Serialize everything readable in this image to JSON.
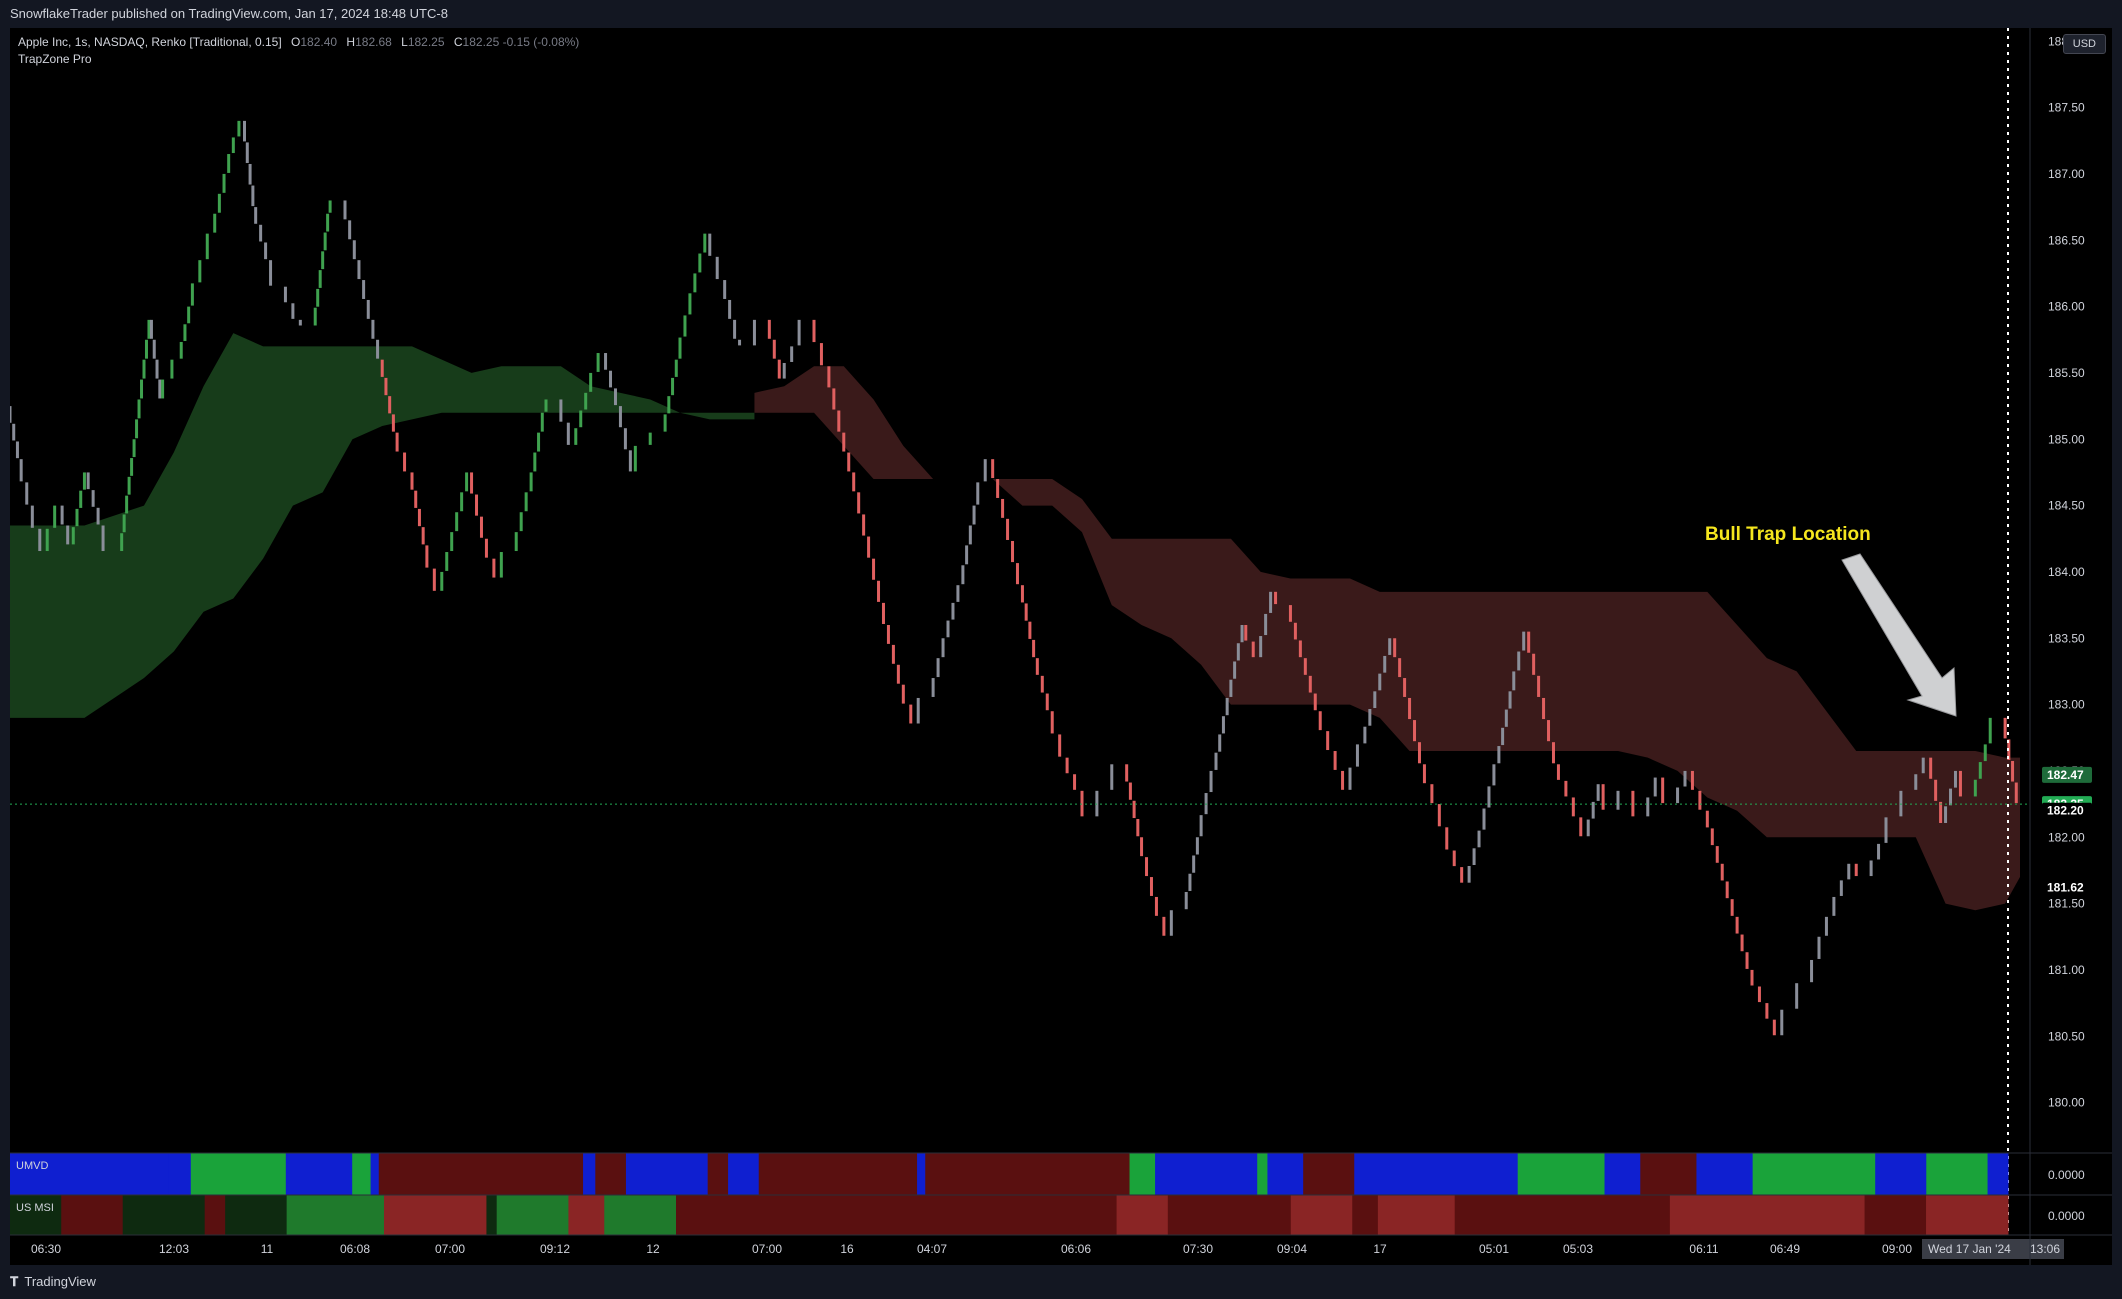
{
  "header": {
    "published": "SnowflakeTrader published on TradingView.com, Jan 17, 2024 18:48 UTC-8"
  },
  "legend": {
    "symbol": "Apple Inc, 1s, NASDAQ, Renko [Traditional, 0.15]",
    "open_label": "O",
    "open": "182.40",
    "high_label": "H",
    "high": "182.68",
    "low_label": "L",
    "low": "182.25",
    "close_label": "C",
    "close": "182.25",
    "change": "-0.15 (-0.08%)",
    "indicator": "TrapZone Pro"
  },
  "currency_button": "USD",
  "annotation": {
    "text": "Bull Trap Location",
    "color": "#f5e61e"
  },
  "subpanes": [
    {
      "name": "UMVD",
      "value": "0.0000"
    },
    {
      "name": "US MSI",
      "value": "0.0000"
    }
  ],
  "price_tags": [
    {
      "value": "182.47",
      "bg": "#1e6b3a",
      "color": "#ffffff"
    },
    {
      "value": "182.25",
      "bg": "#22ab54",
      "color": "#ffffff"
    },
    {
      "value": "182.20",
      "bg": "#000000",
      "color": "#ffffff"
    },
    {
      "value": "181.62",
      "bg": "#000000",
      "color": "#ffffff"
    }
  ],
  "crosshair_time": "Wed 17 Jan '24",
  "crosshair_time_right": "13:06",
  "footer": {
    "brand": "TradingView"
  },
  "colors": {
    "up": "#3fa24f",
    "down": "#e06060",
    "neutral": "#8a8e99",
    "bull_zone": "#173c1a",
    "bear_zone": "#3a1a1a",
    "background": "#000000"
  },
  "chart_data": {
    "type": "renko",
    "box_size": 0.15,
    "y_ticks": [
      "188.00",
      "187.50",
      "187.00",
      "186.50",
      "186.00",
      "185.50",
      "185.00",
      "184.50",
      "184.00",
      "183.50",
      "183.00",
      "182.50",
      "182.00",
      "181.50",
      "181.00",
      "180.50",
      "180.00"
    ],
    "ylim": [
      179.62,
      188.1
    ],
    "x_ticks": [
      "06:30",
      "12:03",
      "11",
      "06:08",
      "07:00",
      "09:12",
      "12",
      "07:00",
      "16",
      "04:07",
      "06:06",
      "07:30",
      "09:04",
      "17",
      "05:01",
      "05:03",
      "06:11",
      "06:49",
      "09:00"
    ],
    "price_path": [
      [
        0,
        185.25
      ],
      [
        1.5,
        184.85
      ],
      [
        3,
        184.5
      ],
      [
        5,
        184.15
      ],
      [
        7,
        184.5
      ],
      [
        8.5,
        184.2
      ],
      [
        10.5,
        184.75
      ],
      [
        12.5,
        184.35
      ],
      [
        15,
        184.15
      ],
      [
        17,
        185.0
      ],
      [
        19,
        185.9
      ],
      [
        20.5,
        185.3
      ],
      [
        23,
        185.6
      ],
      [
        24.5,
        186.0
      ],
      [
        26.5,
        186.35
      ],
      [
        27.5,
        186.55
      ],
      [
        30,
        187.15
      ],
      [
        31.5,
        187.4
      ],
      [
        33,
        186.75
      ],
      [
        35,
        186.35
      ],
      [
        37,
        186.15
      ],
      [
        39,
        185.9
      ],
      [
        41,
        185.85
      ],
      [
        43,
        186.7
      ],
      [
        45,
        186.8
      ],
      [
        47.5,
        186.2
      ],
      [
        50,
        185.6
      ],
      [
        52,
        185.05
      ],
      [
        54,
        184.75
      ],
      [
        56,
        184.2
      ],
      [
        58,
        183.85
      ],
      [
        60,
        184.3
      ],
      [
        62,
        184.75
      ],
      [
        64,
        184.25
      ],
      [
        66,
        183.95
      ],
      [
        68,
        184.15
      ],
      [
        70,
        184.6
      ],
      [
        72,
        185.2
      ],
      [
        74,
        185.3
      ],
      [
        76,
        184.95
      ],
      [
        78,
        185.35
      ],
      [
        80,
        185.65
      ],
      [
        82,
        185.25
      ],
      [
        84,
        184.75
      ],
      [
        86,
        184.95
      ],
      [
        88,
        185.05
      ],
      [
        90,
        185.6
      ],
      [
        92,
        186.1
      ],
      [
        94,
        186.55
      ],
      [
        96,
        186.2
      ],
      [
        98,
        185.75
      ],
      [
        100,
        185.7
      ],
      [
        102,
        185.9
      ],
      [
        104,
        185.45
      ],
      [
        106,
        185.7
      ],
      [
        108,
        185.9
      ],
      [
        110,
        185.55
      ],
      [
        112,
        185.05
      ],
      [
        114,
        184.6
      ],
      [
        116,
        184.1
      ],
      [
        118,
        183.6
      ],
      [
        120,
        183.15
      ],
      [
        122,
        182.85
      ],
      [
        124,
        183.05
      ],
      [
        126,
        183.5
      ],
      [
        128,
        183.9
      ],
      [
        130,
        184.5
      ],
      [
        132,
        184.85
      ],
      [
        134,
        184.4
      ],
      [
        136,
        183.9
      ],
      [
        138,
        183.35
      ],
      [
        140,
        182.95
      ],
      [
        142,
        182.6
      ],
      [
        144,
        182.35
      ],
      [
        146,
        182.15
      ],
      [
        148,
        182.35
      ],
      [
        150,
        182.55
      ],
      [
        152,
        182.0
      ],
      [
        154,
        181.55
      ],
      [
        156,
        181.25
      ],
      [
        158,
        181.45
      ],
      [
        160,
        182.0
      ],
      [
        162,
        182.5
      ],
      [
        164,
        183.05
      ],
      [
        166,
        183.6
      ],
      [
        168,
        183.35
      ],
      [
        170,
        183.85
      ],
      [
        172,
        183.75
      ],
      [
        174,
        183.35
      ],
      [
        176,
        182.95
      ],
      [
        178,
        182.65
      ],
      [
        180,
        182.35
      ],
      [
        182,
        182.7
      ],
      [
        184,
        183.1
      ],
      [
        186,
        183.5
      ],
      [
        188,
        183.05
      ],
      [
        190,
        182.55
      ],
      [
        192,
        182.25
      ],
      [
        194,
        181.9
      ],
      [
        196,
        181.65
      ],
      [
        198,
        182.05
      ],
      [
        200,
        182.55
      ],
      [
        202,
        183.1
      ],
      [
        204,
        183.55
      ],
      [
        206,
        183.05
      ],
      [
        208,
        182.55
      ],
      [
        210,
        182.3
      ],
      [
        212,
        182.0
      ],
      [
        214,
        182.4
      ],
      [
        216,
        182.2
      ],
      [
        218,
        182.35
      ],
      [
        220,
        182.15
      ],
      [
        222,
        182.45
      ],
      [
        224,
        182.25
      ],
      [
        226,
        182.5
      ],
      [
        228,
        182.2
      ],
      [
        230,
        181.8
      ],
      [
        232,
        181.4
      ],
      [
        234,
        181.0
      ],
      [
        236,
        180.75
      ],
      [
        238,
        180.5
      ],
      [
        240,
        180.7
      ],
      [
        242,
        180.9
      ],
      [
        244,
        181.25
      ],
      [
        246,
        181.55
      ],
      [
        248,
        181.8
      ],
      [
        250,
        181.7
      ],
      [
        252,
        181.95
      ],
      [
        254,
        182.15
      ],
      [
        256,
        182.35
      ],
      [
        258,
        182.6
      ],
      [
        260,
        182.1
      ],
      [
        262,
        182.5
      ],
      [
        264,
        182.3
      ],
      [
        266,
        182.7
      ],
      [
        268,
        182.9
      ],
      [
        270,
        182.25
      ]
    ],
    "bull_zone": {
      "x": [
        0,
        10,
        18,
        22,
        26,
        30,
        34,
        38,
        42,
        46,
        50,
        54,
        58,
        62,
        66,
        70,
        74,
        78,
        82,
        86,
        90,
        94,
        98,
        100
      ],
      "upper": [
        184.35,
        184.35,
        184.5,
        184.9,
        185.4,
        185.8,
        185.7,
        185.7,
        185.7,
        185.7,
        185.7,
        185.7,
        185.6,
        185.5,
        185.55,
        185.55,
        185.55,
        185.4,
        185.35,
        185.3,
        185.2,
        185.2,
        185.2,
        185.2
      ],
      "lower": [
        182.9,
        182.9,
        183.2,
        183.4,
        183.7,
        183.8,
        184.1,
        184.5,
        184.6,
        185.0,
        185.1,
        185.15,
        185.2,
        185.2,
        185.2,
        185.2,
        185.2,
        185.2,
        185.2,
        185.2,
        185.2,
        185.15,
        185.15,
        185.15
      ]
    },
    "bear_zone": {
      "x": [
        100,
        104,
        108,
        112,
        116,
        120,
        124,
        128,
        132,
        136,
        140,
        144,
        148,
        152,
        156,
        160,
        164,
        168,
        172,
        176,
        180,
        184,
        188,
        192,
        196,
        200,
        204,
        208,
        212,
        216,
        220,
        224,
        228,
        232,
        236,
        240,
        244,
        248,
        252,
        256,
        260,
        264,
        268,
        270
      ],
      "upper": [
        185.35,
        185.4,
        185.55,
        185.55,
        185.3,
        184.95,
        184.7,
        184.7,
        184.7,
        184.7,
        184.7,
        184.55,
        184.25,
        184.25,
        184.25,
        184.25,
        184.25,
        184.0,
        183.95,
        183.95,
        183.95,
        183.85,
        183.85,
        183.85,
        183.85,
        183.85,
        183.85,
        183.85,
        183.85,
        183.85,
        183.85,
        183.85,
        183.85,
        183.6,
        183.35,
        183.25,
        182.95,
        182.65,
        182.65,
        182.65,
        182.65,
        182.65,
        182.6,
        182.6
      ],
      "lower": [
        185.2,
        185.2,
        185.2,
        184.95,
        184.7,
        184.7,
        184.7,
        184.7,
        184.7,
        184.5,
        184.5,
        184.3,
        183.75,
        183.6,
        183.5,
        183.3,
        183.0,
        183.0,
        183.0,
        183.0,
        183.0,
        182.9,
        182.65,
        182.65,
        182.65,
        182.65,
        182.65,
        182.65,
        182.65,
        182.65,
        182.6,
        182.5,
        182.3,
        182.2,
        182.0,
        182.0,
        182.0,
        182.0,
        182.0,
        182.0,
        181.5,
        181.45,
        181.5,
        181.7
      ]
    },
    "last_price": 182.25,
    "annotation": "Bull Trap Location"
  }
}
